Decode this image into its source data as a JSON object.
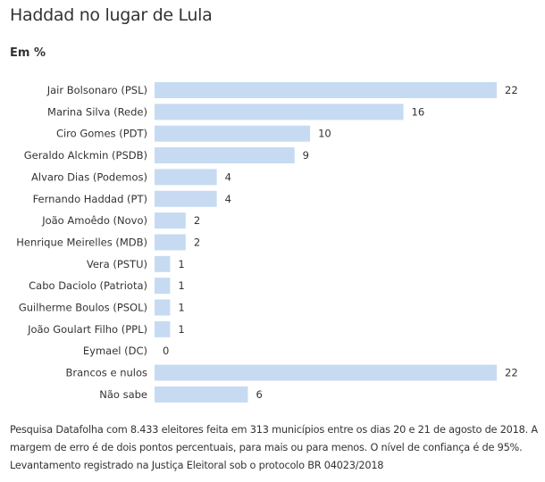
{
  "chart_data": {
    "type": "bar",
    "orientation": "horizontal",
    "title": "Haddad no lugar de Lula",
    "subtitle": "Em %",
    "categories": [
      "Jair Bolsonaro (PSL)",
      "Marina Silva (Rede)",
      "Ciro Gomes (PDT)",
      "Geraldo Alckmin (PSDB)",
      "Alvaro Dias (Podemos)",
      "Fernando Haddad (PT)",
      "João Amoêdo (Novo)",
      "Henrique Meirelles (MDB)",
      "Vera (PSTU)",
      "Cabo Daciolo (Patriota)",
      "Guilherme Boulos (PSOL)",
      "João Goulart Filho (PPL)",
      "Eymael (DC)",
      "Brancos e nulos",
      "Não sabe"
    ],
    "values": [
      22,
      16,
      10,
      9,
      4,
      4,
      2,
      2,
      1,
      1,
      1,
      1,
      0,
      22,
      6
    ],
    "xlim": [
      0,
      22
    ],
    "grid": false,
    "bar_color": "#c6dbf2"
  },
  "note": "Pesquisa Datafolha com 8.433 eleitores feita em 313 municípios entre os dias 20 e 21 de agosto de 2018. A margem de erro é de dois pontos percentuais, para mais ou para menos. O nível de confiança é de 95%. Levantamento registrado na Justiça Eleitoral sob o protocolo BR 04023/2018"
}
